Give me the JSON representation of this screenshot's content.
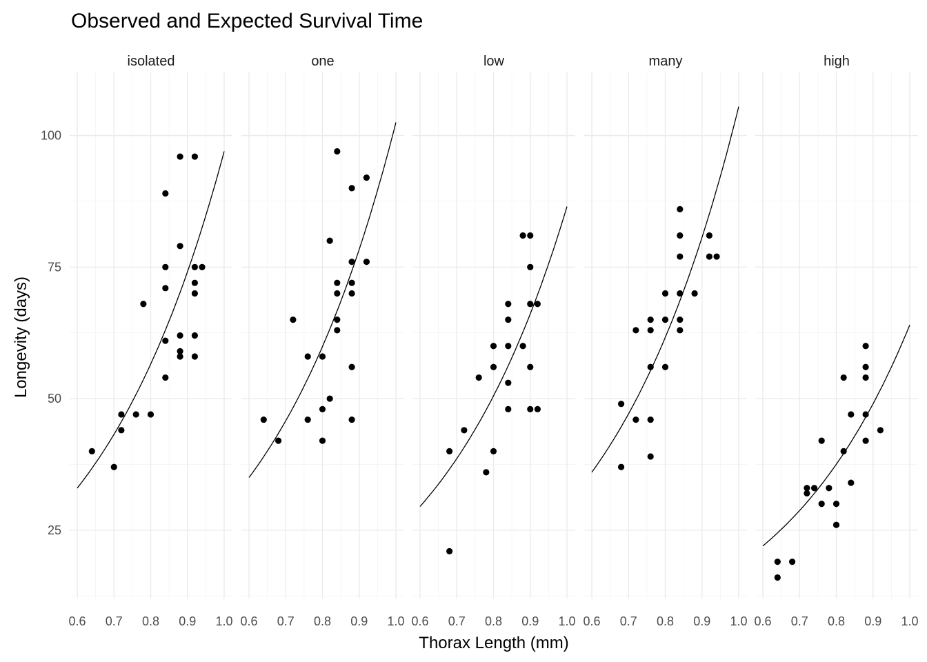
{
  "chart_data": {
    "type": "scatter",
    "title": "Observed and Expected Survival Time",
    "xlabel": "Thorax Length (mm)",
    "ylabel": "Longevity (days)",
    "xlim": [
      0.6,
      1.0
    ],
    "ylim": [
      12,
      112
    ],
    "x_ticks": [
      0.6,
      0.7,
      0.8,
      0.9,
      1.0
    ],
    "x_tick_labels": [
      "0.6",
      "0.7",
      "0.8",
      "0.9",
      "1.0"
    ],
    "y_ticks": [
      25,
      50,
      75,
      100
    ],
    "y_tick_labels": [
      "25",
      "50",
      "75",
      "100"
    ],
    "grid": true,
    "panels": [
      {
        "label": "isolated",
        "curve": {
          "x0": 0.6,
          "y0": 33,
          "x1": 1.0,
          "y1": 97
        },
        "points": [
          [
            0.64,
            40
          ],
          [
            0.7,
            37
          ],
          [
            0.72,
            47
          ],
          [
            0.72,
            44
          ],
          [
            0.76,
            47
          ],
          [
            0.78,
            68
          ],
          [
            0.8,
            47
          ],
          [
            0.84,
            89
          ],
          [
            0.84,
            75
          ],
          [
            0.84,
            71
          ],
          [
            0.84,
            61
          ],
          [
            0.84,
            54
          ],
          [
            0.88,
            96
          ],
          [
            0.88,
            79
          ],
          [
            0.88,
            62
          ],
          [
            0.88,
            59
          ],
          [
            0.88,
            58
          ],
          [
            0.92,
            96
          ],
          [
            0.92,
            75
          ],
          [
            0.92,
            72
          ],
          [
            0.92,
            70
          ],
          [
            0.92,
            62
          ],
          [
            0.92,
            58
          ],
          [
            0.94,
            75
          ]
        ]
      },
      {
        "label": "one",
        "curve": {
          "x0": 0.6,
          "y0": 35,
          "x1": 1.0,
          "y1": 102.5
        },
        "points": [
          [
            0.64,
            46
          ],
          [
            0.68,
            42
          ],
          [
            0.72,
            65
          ],
          [
            0.76,
            58
          ],
          [
            0.76,
            46
          ],
          [
            0.8,
            58
          ],
          [
            0.8,
            48
          ],
          [
            0.8,
            42
          ],
          [
            0.82,
            80
          ],
          [
            0.82,
            50
          ],
          [
            0.84,
            97
          ],
          [
            0.84,
            72
          ],
          [
            0.84,
            70
          ],
          [
            0.84,
            65
          ],
          [
            0.84,
            63
          ],
          [
            0.88,
            90
          ],
          [
            0.88,
            76
          ],
          [
            0.88,
            72
          ],
          [
            0.88,
            70
          ],
          [
            0.88,
            56
          ],
          [
            0.88,
            46
          ],
          [
            0.92,
            92
          ],
          [
            0.92,
            76
          ]
        ]
      },
      {
        "label": "low",
        "curve": {
          "x0": 0.6,
          "y0": 29.5,
          "x1": 1.0,
          "y1": 86.5
        },
        "points": [
          [
            0.68,
            40
          ],
          [
            0.68,
            21
          ],
          [
            0.72,
            44
          ],
          [
            0.76,
            54
          ],
          [
            0.78,
            36
          ],
          [
            0.8,
            60
          ],
          [
            0.8,
            56
          ],
          [
            0.8,
            40
          ],
          [
            0.84,
            68
          ],
          [
            0.84,
            65
          ],
          [
            0.84,
            60
          ],
          [
            0.84,
            53
          ],
          [
            0.84,
            48
          ],
          [
            0.88,
            81
          ],
          [
            0.88,
            60
          ],
          [
            0.9,
            81
          ],
          [
            0.9,
            75
          ],
          [
            0.9,
            68
          ],
          [
            0.9,
            56
          ],
          [
            0.9,
            48
          ],
          [
            0.92,
            68
          ],
          [
            0.92,
            48
          ]
        ]
      },
      {
        "label": "many",
        "curve": {
          "x0": 0.6,
          "y0": 36,
          "x1": 1.0,
          "y1": 105.5
        },
        "points": [
          [
            0.68,
            49
          ],
          [
            0.68,
            37
          ],
          [
            0.72,
            63
          ],
          [
            0.72,
            46
          ],
          [
            0.76,
            65
          ],
          [
            0.76,
            63
          ],
          [
            0.76,
            56
          ],
          [
            0.76,
            46
          ],
          [
            0.76,
            39
          ],
          [
            0.8,
            70
          ],
          [
            0.8,
            65
          ],
          [
            0.8,
            56
          ],
          [
            0.84,
            86
          ],
          [
            0.84,
            81
          ],
          [
            0.84,
            77
          ],
          [
            0.84,
            70
          ],
          [
            0.84,
            65
          ],
          [
            0.84,
            63
          ],
          [
            0.88,
            70
          ],
          [
            0.92,
            81
          ],
          [
            0.92,
            77
          ],
          [
            0.94,
            77
          ]
        ]
      },
      {
        "label": "high",
        "curve": {
          "x0": 0.6,
          "y0": 22,
          "x1": 1.0,
          "y1": 64
        },
        "points": [
          [
            0.64,
            19
          ],
          [
            0.64,
            16
          ],
          [
            0.68,
            19
          ],
          [
            0.72,
            33
          ],
          [
            0.72,
            32
          ],
          [
            0.74,
            33
          ],
          [
            0.76,
            42
          ],
          [
            0.76,
            30
          ],
          [
            0.78,
            33
          ],
          [
            0.8,
            30
          ],
          [
            0.8,
            26
          ],
          [
            0.82,
            54
          ],
          [
            0.82,
            40
          ],
          [
            0.84,
            47
          ],
          [
            0.84,
            34
          ],
          [
            0.88,
            60
          ],
          [
            0.88,
            56
          ],
          [
            0.88,
            54
          ],
          [
            0.88,
            47
          ],
          [
            0.88,
            42
          ],
          [
            0.92,
            44
          ]
        ]
      }
    ]
  }
}
